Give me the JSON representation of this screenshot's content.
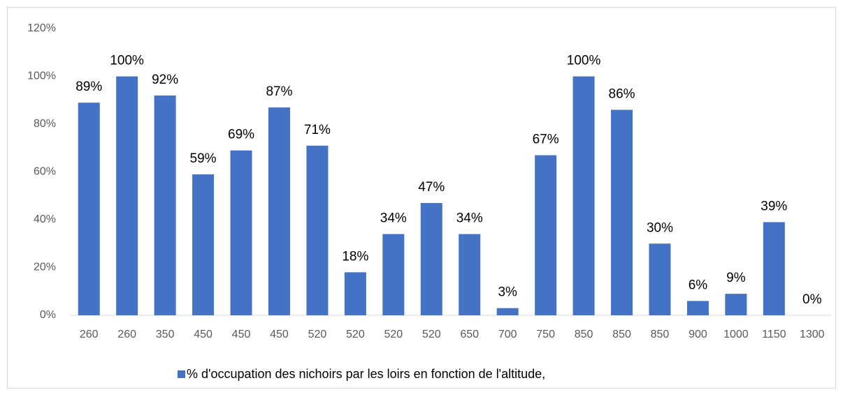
{
  "chart_data": {
    "type": "bar",
    "categories": [
      "260",
      "260",
      "350",
      "450",
      "450",
      "450",
      "520",
      "520",
      "520",
      "520",
      "650",
      "700",
      "750",
      "850",
      "850",
      "850",
      "900",
      "1000",
      "1150",
      "1300"
    ],
    "series": [
      {
        "name": "% d'occupation des nichoirs  par les loirs en fonction de l'altitude,",
        "color": "#4472c4",
        "values": [
          89,
          100,
          92,
          59,
          69,
          87,
          71,
          18,
          34,
          47,
          34,
          3,
          67,
          100,
          86,
          30,
          6,
          9,
          39,
          0
        ],
        "value_labels": [
          "89%",
          "100%",
          "92%",
          "59%",
          "69%",
          "87%",
          "71%",
          "18%",
          "34%",
          "47%",
          "34%",
          "3%",
          "67%",
          "100%",
          "86%",
          "30%",
          "6%",
          "9%",
          "39%",
          "0%"
        ]
      }
    ],
    "ylim": [
      0,
      120
    ],
    "yticks": [
      {
        "value": 0,
        "label": "0%"
      },
      {
        "value": 20,
        "label": "20%"
      },
      {
        "value": 40,
        "label": "40%"
      },
      {
        "value": 60,
        "label": "60%"
      },
      {
        "value": 80,
        "label": "80%"
      },
      {
        "value": 100,
        "label": "100%"
      },
      {
        "value": 120,
        "label": "120%"
      }
    ],
    "grid": false,
    "legend": "bottom"
  }
}
